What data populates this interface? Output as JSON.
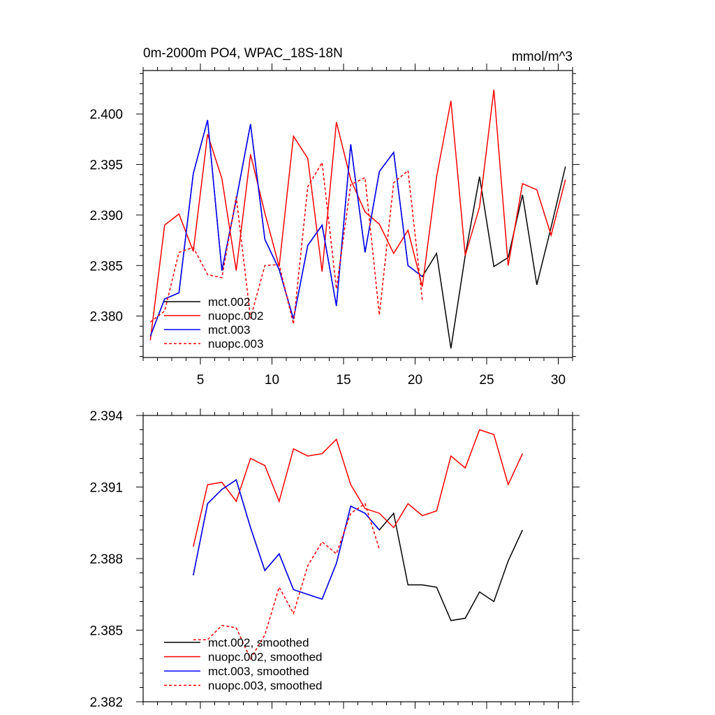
{
  "chart_data": [
    {
      "type": "line",
      "title": "0m-2000m PO4, WPAC_18S-18N",
      "units": "mmol/m^3",
      "xlim": [
        1,
        31
      ],
      "ylim": [
        2.3759,
        2.4043
      ],
      "xticks": [
        5,
        10,
        15,
        20,
        25,
        30
      ],
      "yticks": [
        2.38,
        2.385,
        2.39,
        2.395,
        2.4
      ],
      "yticklabels": [
        "2.380",
        "2.385",
        "2.390",
        "2.395",
        "2.400"
      ],
      "colors": {
        "black": "#000000",
        "red": "#ff0000",
        "blue": "#0000ff"
      },
      "series": [
        {
          "name": "mct.002",
          "color": "black",
          "dash": false,
          "x": [
            1.5,
            2.5,
            3.5,
            4.5,
            5.5,
            6.5,
            7.5,
            8.5,
            9.5,
            10.5,
            11.5,
            12.5,
            13.5,
            14.5,
            15.5,
            16.5,
            17.5,
            18.5,
            19.5,
            20.5,
            21.5,
            22.5,
            23.5,
            24.5,
            25.5,
            26.5,
            27.5,
            28.5,
            29.5,
            30.5
          ],
          "values": [
            2.378,
            2.3817,
            2.3823,
            2.3941,
            2.3994,
            2.3845,
            2.3915,
            2.399,
            2.3876,
            2.3846,
            2.3797,
            2.387,
            2.389,
            2.381,
            2.397,
            2.3863,
            2.3943,
            2.3962,
            2.385,
            2.3839,
            2.3862,
            2.3768,
            2.386,
            2.3938,
            2.3849,
            2.3858,
            2.392,
            2.3831,
            2.3888,
            2.3948
          ]
        },
        {
          "name": "nuopc.002",
          "color": "red",
          "dash": false,
          "x": [
            1.5,
            2.5,
            3.5,
            4.5,
            5.5,
            6.5,
            7.5,
            8.5,
            9.5,
            10.5,
            11.5,
            12.5,
            13.5,
            14.5,
            15.5,
            16.5,
            17.5,
            18.5,
            19.5,
            20.5,
            21.5,
            22.5,
            23.5,
            24.5,
            25.5,
            26.5,
            27.5,
            28.5,
            29.5,
            30.5
          ],
          "values": [
            2.3776,
            2.389,
            2.3901,
            2.3864,
            2.398,
            2.3936,
            2.3845,
            2.396,
            2.3902,
            2.3849,
            2.3978,
            2.3956,
            2.3844,
            2.3992,
            2.3935,
            2.3903,
            2.3891,
            2.3862,
            2.3885,
            2.3829,
            2.3938,
            2.4013,
            2.386,
            2.3908,
            2.4024,
            2.385,
            2.3931,
            2.3925,
            2.388,
            2.3935
          ]
        },
        {
          "name": "mct.003",
          "color": "blue",
          "dash": false,
          "x": [
            1.5,
            2.5,
            3.5,
            4.5,
            5.5,
            6.5,
            7.5,
            8.5,
            9.5,
            10.5,
            11.5,
            12.5,
            13.5,
            14.5,
            15.5,
            16.5,
            17.5,
            18.5,
            19.5,
            20.5
          ],
          "values": [
            2.378,
            2.3817,
            2.3823,
            2.3941,
            2.3994,
            2.3845,
            2.3915,
            2.399,
            2.3876,
            2.3846,
            2.3797,
            2.387,
            2.389,
            2.381,
            2.397,
            2.3863,
            2.3943,
            2.3962,
            2.385,
            2.3839
          ]
        },
        {
          "name": "nuopc.003",
          "color": "red",
          "dash": true,
          "x": [
            1.5,
            2.5,
            3.5,
            4.5,
            5.5,
            6.5,
            7.5,
            8.5,
            9.5,
            10.5,
            11.5,
            12.5,
            13.5,
            14.5,
            15.5,
            16.5,
            17.5,
            18.5,
            19.5,
            20.5
          ],
          "values": [
            2.3794,
            2.3805,
            2.3863,
            2.3868,
            2.3841,
            2.3838,
            2.3918,
            2.3798,
            2.385,
            2.3851,
            2.3792,
            2.3928,
            2.3952,
            2.3827,
            2.393,
            2.3937,
            2.3801,
            2.3932,
            2.3944,
            2.3816
          ]
        }
      ]
    },
    {
      "type": "line",
      "title": "",
      "xlim": [
        1,
        31
      ],
      "ylim": [
        2.382,
        2.394
      ],
      "xticks": [
        5,
        10,
        15,
        20,
        25,
        30
      ],
      "yticks": [
        2.382,
        2.385,
        2.388,
        2.391,
        2.394
      ],
      "yticklabels": [
        "2.382",
        "2.385",
        "2.388",
        "2.391",
        "2.394"
      ],
      "colors": {
        "black": "#000000",
        "red": "#ff0000",
        "blue": "#0000ff"
      },
      "series": [
        {
          "name": "mct.002, smoothed",
          "color": "black",
          "dash": false,
          "x": [
            4.5,
            5.5,
            6.5,
            7.5,
            8.5,
            9.5,
            10.5,
            11.5,
            12.5,
            13.5,
            14.5,
            15.5,
            16.5,
            17.5,
            18.5,
            19.5,
            20.5,
            21.5,
            22.5,
            23.5,
            24.5,
            25.5,
            26.5,
            27.5
          ],
          "values": [
            2.3873,
            2.3903,
            2.3909,
            2.3913,
            2.3893,
            2.3875,
            2.3882,
            2.3867,
            2.3865,
            2.3863,
            2.3878,
            2.3902,
            2.3899,
            2.3892,
            2.3899,
            2.3869,
            2.3869,
            2.3868,
            2.3854,
            2.3855,
            2.3866,
            2.3862,
            2.3879,
            2.3892
          ]
        },
        {
          "name": "nuopc.002, smoothed",
          "color": "red",
          "dash": false,
          "x": [
            4.5,
            5.5,
            6.5,
            7.5,
            8.5,
            9.5,
            10.5,
            11.5,
            12.5,
            13.5,
            14.5,
            15.5,
            16.5,
            17.5,
            18.5,
            19.5,
            20.5,
            21.5,
            22.5,
            23.5,
            24.5,
            25.5,
            26.5,
            27.5
          ],
          "values": [
            2.3885,
            2.3911,
            2.3912,
            2.3904,
            2.3922,
            2.3919,
            2.3904,
            2.3926,
            2.3923,
            2.3924,
            2.393,
            2.3911,
            2.3901,
            2.3899,
            2.3893,
            2.3903,
            2.3898,
            2.39,
            2.3923,
            2.3918,
            2.3934,
            2.3932,
            2.3911,
            2.3924
          ]
        },
        {
          "name": "mct.003, smoothed",
          "color": "blue",
          "dash": false,
          "x": [
            4.5,
            5.5,
            6.5,
            7.5,
            8.5,
            9.5,
            10.5,
            11.5,
            12.5,
            13.5,
            14.5,
            15.5,
            16.5,
            17.5
          ],
          "values": [
            2.3873,
            2.3903,
            2.3909,
            2.3913,
            2.3893,
            2.3875,
            2.3882,
            2.3867,
            2.3865,
            2.3863,
            2.3878,
            2.3902,
            2.3899,
            2.3892
          ]
        },
        {
          "name": "nuopc.003, smoothed",
          "color": "red",
          "dash": true,
          "x": [
            4.5,
            5.5,
            6.5,
            7.5,
            8.5,
            9.5,
            10.5,
            11.5,
            12.5,
            13.5,
            14.5,
            15.5,
            16.5,
            17.5
          ],
          "values": [
            2.3846,
            2.3846,
            2.3852,
            2.3851,
            2.3838,
            2.3848,
            2.3868,
            2.3857,
            2.3877,
            2.3887,
            2.3882,
            2.3899,
            2.3903,
            2.3884
          ]
        }
      ]
    }
  ]
}
